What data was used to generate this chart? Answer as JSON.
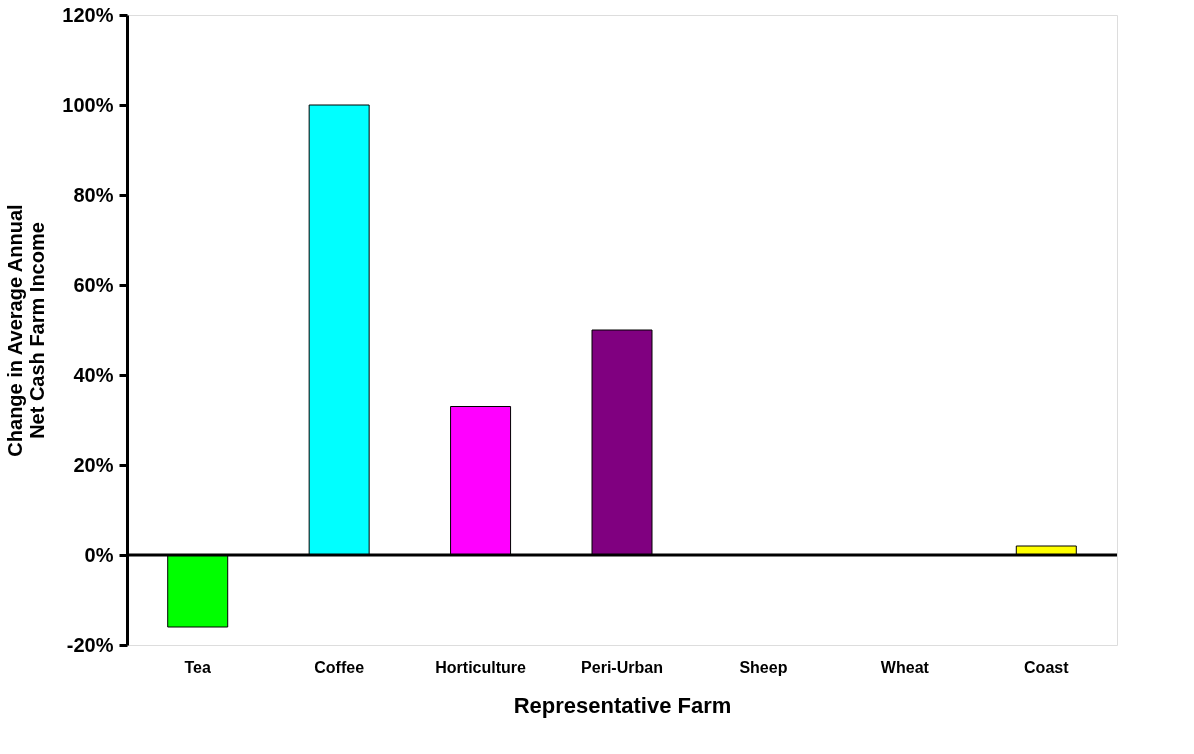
{
  "chart_data": {
    "type": "bar",
    "categories": [
      "Tea",
      "Coffee",
      "Horticulture",
      "Peri-Urban",
      "Sheep",
      "Wheat",
      "Coast"
    ],
    "values": [
      -16,
      100,
      33,
      50,
      0,
      0,
      2
    ],
    "colors": [
      "#00ff00",
      "#00ffff",
      "#ff00ff",
      "#800080",
      "#000000",
      "#000000",
      "#ffff00"
    ],
    "xlabel": "Representative Farm",
    "ylabel": "Change in Average Annual Net Cash Farm Income",
    "ylim": [
      -20,
      120
    ],
    "yticks": [
      {
        "value": -20,
        "label": "-20%"
      },
      {
        "value": 0,
        "label": "0%"
      },
      {
        "value": 20,
        "label": "20%"
      },
      {
        "value": 40,
        "label": "40%"
      },
      {
        "value": 60,
        "label": "60%"
      },
      {
        "value": 80,
        "label": "80%"
      },
      {
        "value": 100,
        "label": "100%"
      },
      {
        "value": 120,
        "label": "120%"
      }
    ],
    "ref_lines": [
      {
        "axis": "y",
        "value": 0,
        "color": "#000000"
      }
    ],
    "grid": false
  }
}
